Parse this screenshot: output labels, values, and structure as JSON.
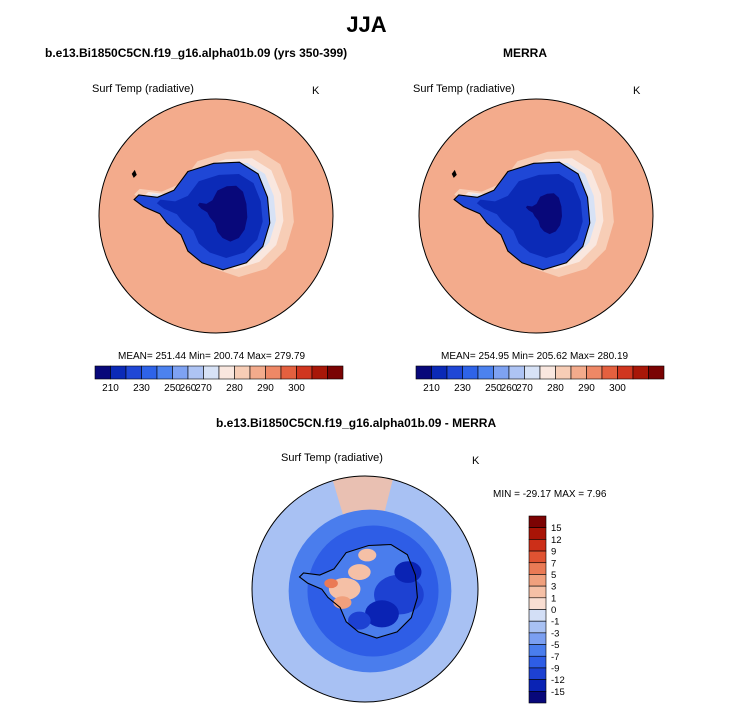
{
  "title": "JJA",
  "colors": {
    "abs_palette": [
      "#08087a",
      "#0b2ab7",
      "#1f47d6",
      "#2e63e8",
      "#4c82ef",
      "#7ea2f2",
      "#aec4f4",
      "#d7e2f6",
      "#f9e7df",
      "#f7cdb6",
      "#f3ab8c",
      "#ee8866",
      "#e4603f",
      "#d0361f",
      "#a81708",
      "#7a0303"
    ],
    "diff_palette": [
      "#08087a",
      "#0a23b4",
      "#1d41d2",
      "#2e5de6",
      "#4a7ded",
      "#7b9ff1",
      "#a8c1f3",
      "#d3dff6",
      "#f9ded2",
      "#f5c0a6",
      "#f0a07d",
      "#ea7a55",
      "#e05332",
      "#cc2f18",
      "#a91406",
      "#7c0303"
    ]
  },
  "chart_data": [
    {
      "type": "heatmap",
      "projection": "south-polar-stereographic",
      "title": "b.e13.Bi1850C5CN.f19_g16.alpha01b.09 (yrs 350-399)",
      "variable": "Surf Temp (radiative)",
      "units": "K",
      "stats": "MEAN= 251.44  Min= 200.74  Max= 279.79",
      "mean": 251.44,
      "min": 200.74,
      "max": 279.79,
      "colorbar": {
        "orientation": "horizontal",
        "ticks": [
          "210",
          "230",
          "250",
          "260",
          "270",
          "280",
          "290",
          "300"
        ]
      }
    },
    {
      "type": "heatmap",
      "projection": "south-polar-stereographic",
      "title": "MERRA",
      "variable": "Surf Temp (radiative)",
      "units": "K",
      "stats": "MEAN= 254.95  Min= 205.62  Max= 280.19",
      "mean": 254.95,
      "min": 205.62,
      "max": 280.19,
      "colorbar": {
        "orientation": "horizontal",
        "ticks": [
          "210",
          "230",
          "250",
          "260",
          "270",
          "280",
          "290",
          "300"
        ]
      }
    },
    {
      "type": "heatmap",
      "projection": "south-polar-stereographic",
      "title": "b.e13.Bi1850C5CN.f19_g16.alpha01b.09 - MERRA",
      "variable": "Surf Temp (radiative)",
      "units": "K",
      "stats": "MIN = -29.17 MAX =   7.96",
      "min": -29.17,
      "max": 7.96,
      "colorbar": {
        "orientation": "vertical",
        "ticks": [
          "15",
          "12",
          "9",
          "7",
          "5",
          "3",
          "1",
          "0",
          "-1",
          "-3",
          "-5",
          "-7",
          "-9",
          "-12",
          "-15"
        ]
      }
    }
  ]
}
